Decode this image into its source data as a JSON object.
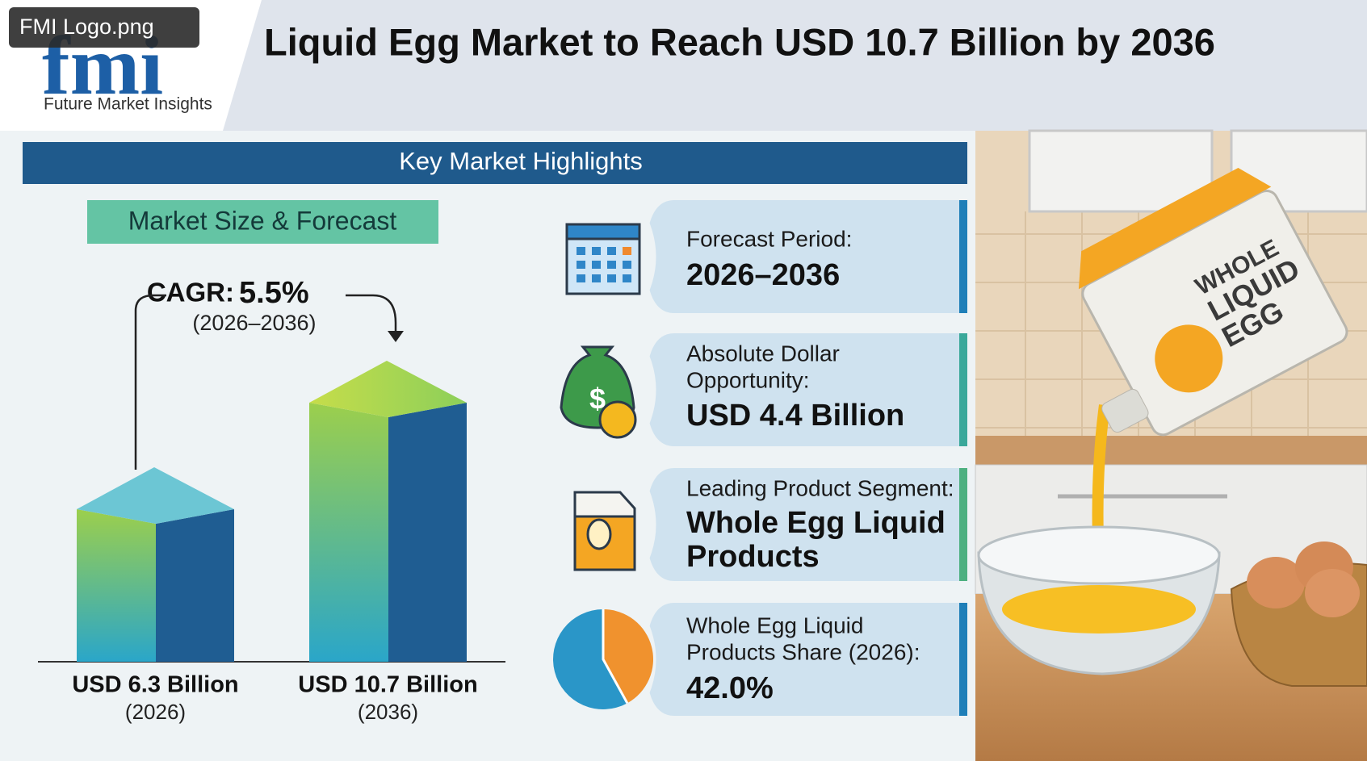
{
  "header": {
    "logo_tooltip": "FMI Logo.png",
    "logo_mark": "fmi",
    "logo_caption": "Future Market Insights",
    "title": "Liquid Egg Market to Reach USD 10.7 Billion by 2036"
  },
  "banner": "Key Market Highlights",
  "market_size": {
    "heading": "Market Size & Forecast",
    "cagr_label": "CAGR:",
    "cagr_value": "5.5%",
    "cagr_period": "(2026–2036)",
    "bars": [
      {
        "value": 6.3,
        "label": "USD 6.3 Billion",
        "year": "(2026)"
      },
      {
        "value": 10.7,
        "label": "USD 10.7 Billion",
        "year": "(2036)"
      }
    ]
  },
  "highlights": [
    {
      "label": [
        "Forecast Period:"
      ],
      "value": [
        "2026–2036"
      ]
    },
    {
      "label": [
        "Absolute Dollar",
        "Opportunity:"
      ],
      "value": [
        "USD 4.4 Billion"
      ]
    },
    {
      "label": [
        "Leading Product Segment:"
      ],
      "value": [
        "Whole Egg Liquid",
        "Products"
      ]
    },
    {
      "label": [
        "Whole Egg Liquid",
        "Products Share (2026):"
      ],
      "value": [
        "42.0%"
      ],
      "share": 42.0
    }
  ],
  "image": {
    "carton_text": [
      "WHOLE",
      "LIQUID",
      "EGG"
    ]
  }
}
